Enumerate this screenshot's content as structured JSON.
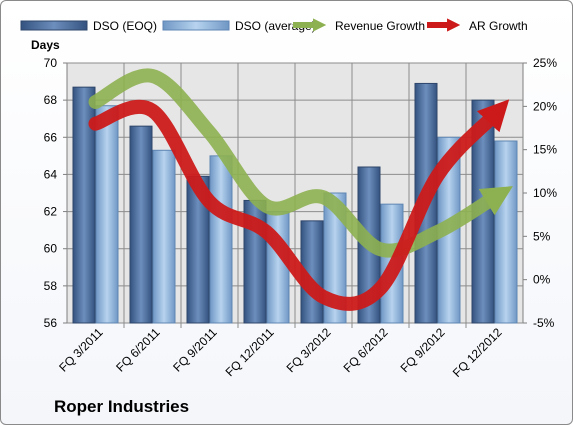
{
  "company": "Roper Industries",
  "chart_data": {
    "type": "bar",
    "title": "",
    "ylabel": "Days",
    "ylim": [
      56,
      70
    ],
    "y2lim": [
      -5,
      25
    ],
    "y2_ticks": [
      "-5%",
      "0%",
      "5%",
      "10%",
      "15%",
      "20%",
      "25%"
    ],
    "categories": [
      "FQ 3/2011",
      "FQ 6/2011",
      "FQ 9/2011",
      "FQ 12/2011",
      "FQ 3/2012",
      "FQ 6/2012",
      "FQ 9/2012",
      "FQ 12/2012"
    ],
    "legend_position": "top",
    "series": [
      {
        "name": "DSO (EOQ)",
        "kind": "bar",
        "axis": "left",
        "color": "#4a6fa0",
        "values": [
          68.7,
          66.6,
          63.9,
          62.6,
          61.5,
          64.4,
          68.9,
          68.0
        ]
      },
      {
        "name": "DSO (average)",
        "kind": "bar",
        "axis": "left",
        "color": "#8fb4dc",
        "values": [
          67.7,
          65.3,
          65.0,
          62.0,
          63.0,
          62.4,
          66.0,
          65.8
        ]
      },
      {
        "name": "Revenue Growth",
        "kind": "arrow-line",
        "axis": "right",
        "color": "#8db050",
        "values": [
          20.5,
          23.5,
          17.0,
          8.5,
          9.5,
          3.5,
          5.5,
          9.5
        ]
      },
      {
        "name": "AR Growth",
        "kind": "arrow-line",
        "axis": "right",
        "color": "#cc1a1a",
        "values": [
          18.0,
          19.5,
          9.0,
          5.5,
          -2.0,
          -1.0,
          12.0,
          19.0
        ]
      }
    ]
  }
}
